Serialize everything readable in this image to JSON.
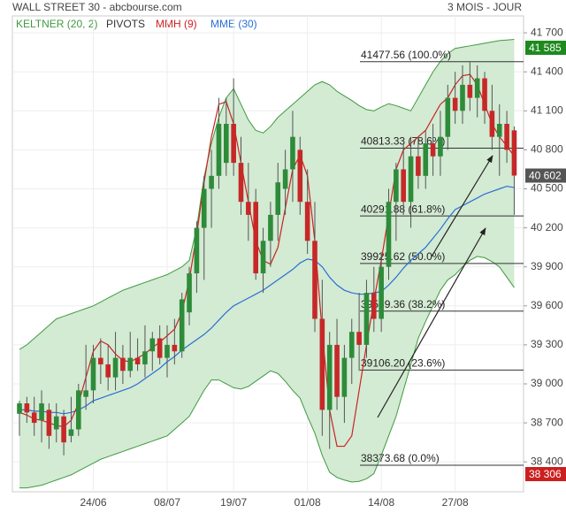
{
  "chart_data": {
    "type": "candlestick",
    "title": "WALL STREET 30 - abcbourse.com",
    "subtitle": "3 MOIS - JOUR",
    "categories": [
      null,
      null,
      null,
      null,
      null,
      null,
      null,
      null,
      null,
      null,
      "24/06",
      null,
      null,
      null,
      null,
      null,
      null,
      null,
      null,
      null,
      "08/07",
      null,
      null,
      null,
      null,
      null,
      null,
      null,
      null,
      "19/07",
      null,
      null,
      null,
      null,
      null,
      null,
      null,
      null,
      null,
      "01/08",
      null,
      null,
      null,
      null,
      null,
      null,
      null,
      null,
      null,
      "14/08",
      null,
      null,
      null,
      null,
      null,
      null,
      null,
      null,
      null,
      "27/08",
      null,
      null,
      null,
      null,
      null,
      null,
      null,
      null
    ],
    "open": [
      38770,
      38850,
      38780,
      38720,
      38800,
      38650,
      38750,
      38600,
      38650,
      38900,
      38950,
      39200,
      39150,
      39050,
      39200,
      39100,
      39200,
      39150,
      39250,
      39350,
      39200,
      39300,
      39250,
      39550,
      39850,
      40200,
      40500,
      40600,
      40700,
      41000,
      40700,
      40400,
      40400,
      39850,
      40100,
      40300,
      40500,
      40650,
      40800,
      40400,
      40100,
      39500,
      38800,
      39300,
      38900,
      39200,
      39400,
      39300,
      39700,
      39500,
      39900,
      40400,
      40650,
      40400,
      40750,
      40600,
      40850,
      40750,
      40900,
      41200,
      41100,
      41300,
      41200,
      41350,
      41100,
      40900,
      41000,
      40950
    ],
    "high": [
      38870,
      38900,
      38900,
      38950,
      38850,
      38850,
      38800,
      38900,
      39000,
      39300,
      39300,
      39350,
      39300,
      39400,
      39300,
      39400,
      39350,
      39450,
      39400,
      39450,
      39450,
      39500,
      39700,
      39900,
      40250,
      40600,
      40800,
      41200,
      41200,
      41350,
      40900,
      40700,
      40500,
      40200,
      40400,
      40700,
      40800,
      41100,
      40900,
      40650,
      40400,
      39800,
      39400,
      39500,
      39300,
      39500,
      39700,
      39800,
      39900,
      40000,
      40500,
      40700,
      40850,
      40900,
      40900,
      40950,
      41000,
      41100,
      41300,
      41400,
      41450,
      41478,
      41450,
      41400,
      41300,
      41150,
      41100,
      40980
    ],
    "low": [
      38600,
      38700,
      38600,
      38550,
      38500,
      38550,
      38450,
      38550,
      38600,
      38800,
      38850,
      39000,
      38950,
      38950,
      39000,
      39050,
      39100,
      39050,
      39100,
      39150,
      39050,
      39150,
      39200,
      39450,
      39700,
      39800,
      40200,
      40500,
      40600,
      40600,
      40300,
      40100,
      39800,
      39700,
      39900,
      40100,
      40300,
      40400,
      40300,
      40000,
      39400,
      38600,
      38500,
      38800,
      38700,
      39000,
      39100,
      39200,
      39400,
      39400,
      39800,
      40100,
      40300,
      40200,
      40500,
      40500,
      40600,
      40600,
      40800,
      41000,
      41000,
      41100,
      41050,
      41000,
      40800,
      40600,
      40700,
      40300
    ],
    "close": [
      38850,
      38780,
      38700,
      38850,
      38600,
      38750,
      38550,
      38650,
      38950,
      38950,
      39200,
      39150,
      39050,
      39200,
      39100,
      39200,
      39150,
      39250,
      39350,
      39200,
      39300,
      39250,
      39650,
      39850,
      40200,
      40500,
      40600,
      41000,
      41000,
      40700,
      40400,
      40300,
      39850,
      40100,
      40300,
      40550,
      40650,
      40900,
      40400,
      40100,
      39500,
      38800,
      39300,
      38900,
      39200,
      39400,
      39300,
      39700,
      39500,
      39900,
      40400,
      40650,
      40400,
      40750,
      40600,
      40850,
      40750,
      40900,
      41200,
      41100,
      41300,
      41200,
      41350,
      41100,
      40900,
      41000,
      40800,
      40602
    ],
    "up_color": "#2e8b3a",
    "down_color": "#c62828",
    "indicators": [
      {
        "name": "KELTNER (20, 2)",
        "color": "#3f9a3f",
        "fill": "#d3ead3",
        "upper": [
          39265,
          39300,
          39350,
          39400,
          39450,
          39500,
          39520,
          39540,
          39560,
          39580,
          39600,
          39630,
          39660,
          39690,
          39720,
          39740,
          39760,
          39780,
          39800,
          39820,
          39840,
          39870,
          39900,
          39950,
          40200,
          40590,
          40850,
          41050,
          41200,
          41270,
          41150,
          41030,
          40950,
          40930,
          40980,
          41050,
          41100,
          41150,
          41200,
          41250,
          41300,
          41325,
          41300,
          41250,
          41215,
          41180,
          41140,
          41110,
          41100,
          41130,
          41155,
          41140,
          41120,
          41100,
          41200,
          41300,
          41400,
          41480,
          41540,
          41580,
          41590,
          41600,
          41610,
          41620,
          41630,
          41640,
          41645,
          41650
        ],
        "lower": [
          38200,
          38200,
          38210,
          38220,
          38240,
          38260,
          38280,
          38300,
          38330,
          38360,
          38390,
          38420,
          38440,
          38460,
          38480,
          38500,
          38520,
          38540,
          38560,
          38580,
          38600,
          38650,
          38700,
          38750,
          38850,
          38950,
          39030,
          39030,
          39000,
          38970,
          38960,
          38980,
          39020,
          39060,
          39100,
          39080,
          39020,
          38950,
          38890,
          38750,
          38620,
          38450,
          38320,
          38280,
          38260,
          38245,
          38250,
          38270,
          38310,
          38450,
          38600,
          38750,
          38950,
          39150,
          39350,
          39480,
          39600,
          39720,
          39800,
          39840,
          39900,
          39950,
          39980,
          39970,
          39940,
          39900,
          39820,
          39740
        ]
      },
      {
        "name": "PIVOTS",
        "color": "#333333"
      },
      {
        "name": "MMH (9)",
        "color": "#cc2222",
        "values": [
          38780,
          38760,
          38730,
          38720,
          38700,
          38680,
          38670,
          38720,
          38850,
          39050,
          39250,
          39330,
          39300,
          39230,
          39180,
          39170,
          39200,
          39230,
          39280,
          39320,
          39370,
          39420,
          39550,
          39800,
          40150,
          40550,
          40900,
          41150,
          41170,
          41000,
          40700,
          40400,
          40100,
          39950,
          39920,
          40050,
          40350,
          40650,
          40760,
          40600,
          40100,
          39400,
          38800,
          38520,
          38520,
          38600,
          38950,
          39300,
          39640,
          39950,
          40300,
          40650,
          40800,
          40850,
          40900,
          40950,
          41050,
          41150,
          41200,
          41300,
          41370,
          41380,
          41300,
          41150,
          41000,
          40900,
          40830,
          40750
        ]
      },
      {
        "name": "MME (30)",
        "color": "#2a6fd6",
        "values": [
          38800,
          38800,
          38790,
          38790,
          38780,
          38780,
          38770,
          38780,
          38800,
          38830,
          38870,
          38890,
          38910,
          38930,
          38950,
          38970,
          39000,
          39040,
          39080,
          39120,
          39170,
          39210,
          39260,
          39300,
          39340,
          39380,
          39430,
          39490,
          39550,
          39600,
          39630,
          39660,
          39690,
          39720,
          39760,
          39800,
          39840,
          39880,
          39930,
          39960,
          39950,
          39900,
          39820,
          39760,
          39720,
          39700,
          39690,
          39690,
          39700,
          39710,
          39760,
          39820,
          39890,
          39950,
          40000,
          40050,
          40120,
          40190,
          40270,
          40340,
          40370,
          40400,
          40430,
          40460,
          40480,
          40500,
          40520,
          40510
        ]
      }
    ],
    "levels": [
      {
        "value": 41477.56,
        "label": "41477.56 (100.0%)"
      },
      {
        "value": 40813.33,
        "label": "40813.33 (78.6%)"
      },
      {
        "value": 40291.88,
        "label": "40291.88 (61.8%)"
      },
      {
        "value": 39925.62,
        "label": "39925.62 (50.0%)"
      },
      {
        "value": 39559.36,
        "label": "39559.36 (38.2%)"
      },
      {
        "value": 39106.2,
        "label": "39106.20 (23.6%)"
      },
      {
        "value": 38373.68,
        "label": "38373.68 (0.0%)"
      }
    ],
    "price_tags": [
      {
        "value": 41585,
        "label": "41 585",
        "color": "#1e8a1e"
      },
      {
        "value": 40602,
        "label": "40 602",
        "color": "#555555"
      },
      {
        "value": 38306,
        "label": "38 306",
        "color": "#cc1f1f"
      }
    ],
    "ylim": [
      38170,
      41830
    ],
    "yticks": [
      {
        "value": 41700,
        "label": "41 700"
      },
      {
        "value": 41400,
        "label": "41 400"
      },
      {
        "value": 41100,
        "label": "41 100"
      },
      {
        "value": 40800,
        "label": "40 800"
      },
      {
        "value": 40500,
        "label": "40 500"
      },
      {
        "value": 40200,
        "label": "40 200"
      },
      {
        "value": 39900,
        "label": "39 900"
      },
      {
        "value": 39600,
        "label": "39 600"
      },
      {
        "value": 39300,
        "label": "39 300"
      },
      {
        "value": 39000,
        "label": "39 000"
      },
      {
        "value": 38700,
        "label": "38 700"
      },
      {
        "value": 38400,
        "label": "38 400"
      }
    ],
    "grid": true
  }
}
